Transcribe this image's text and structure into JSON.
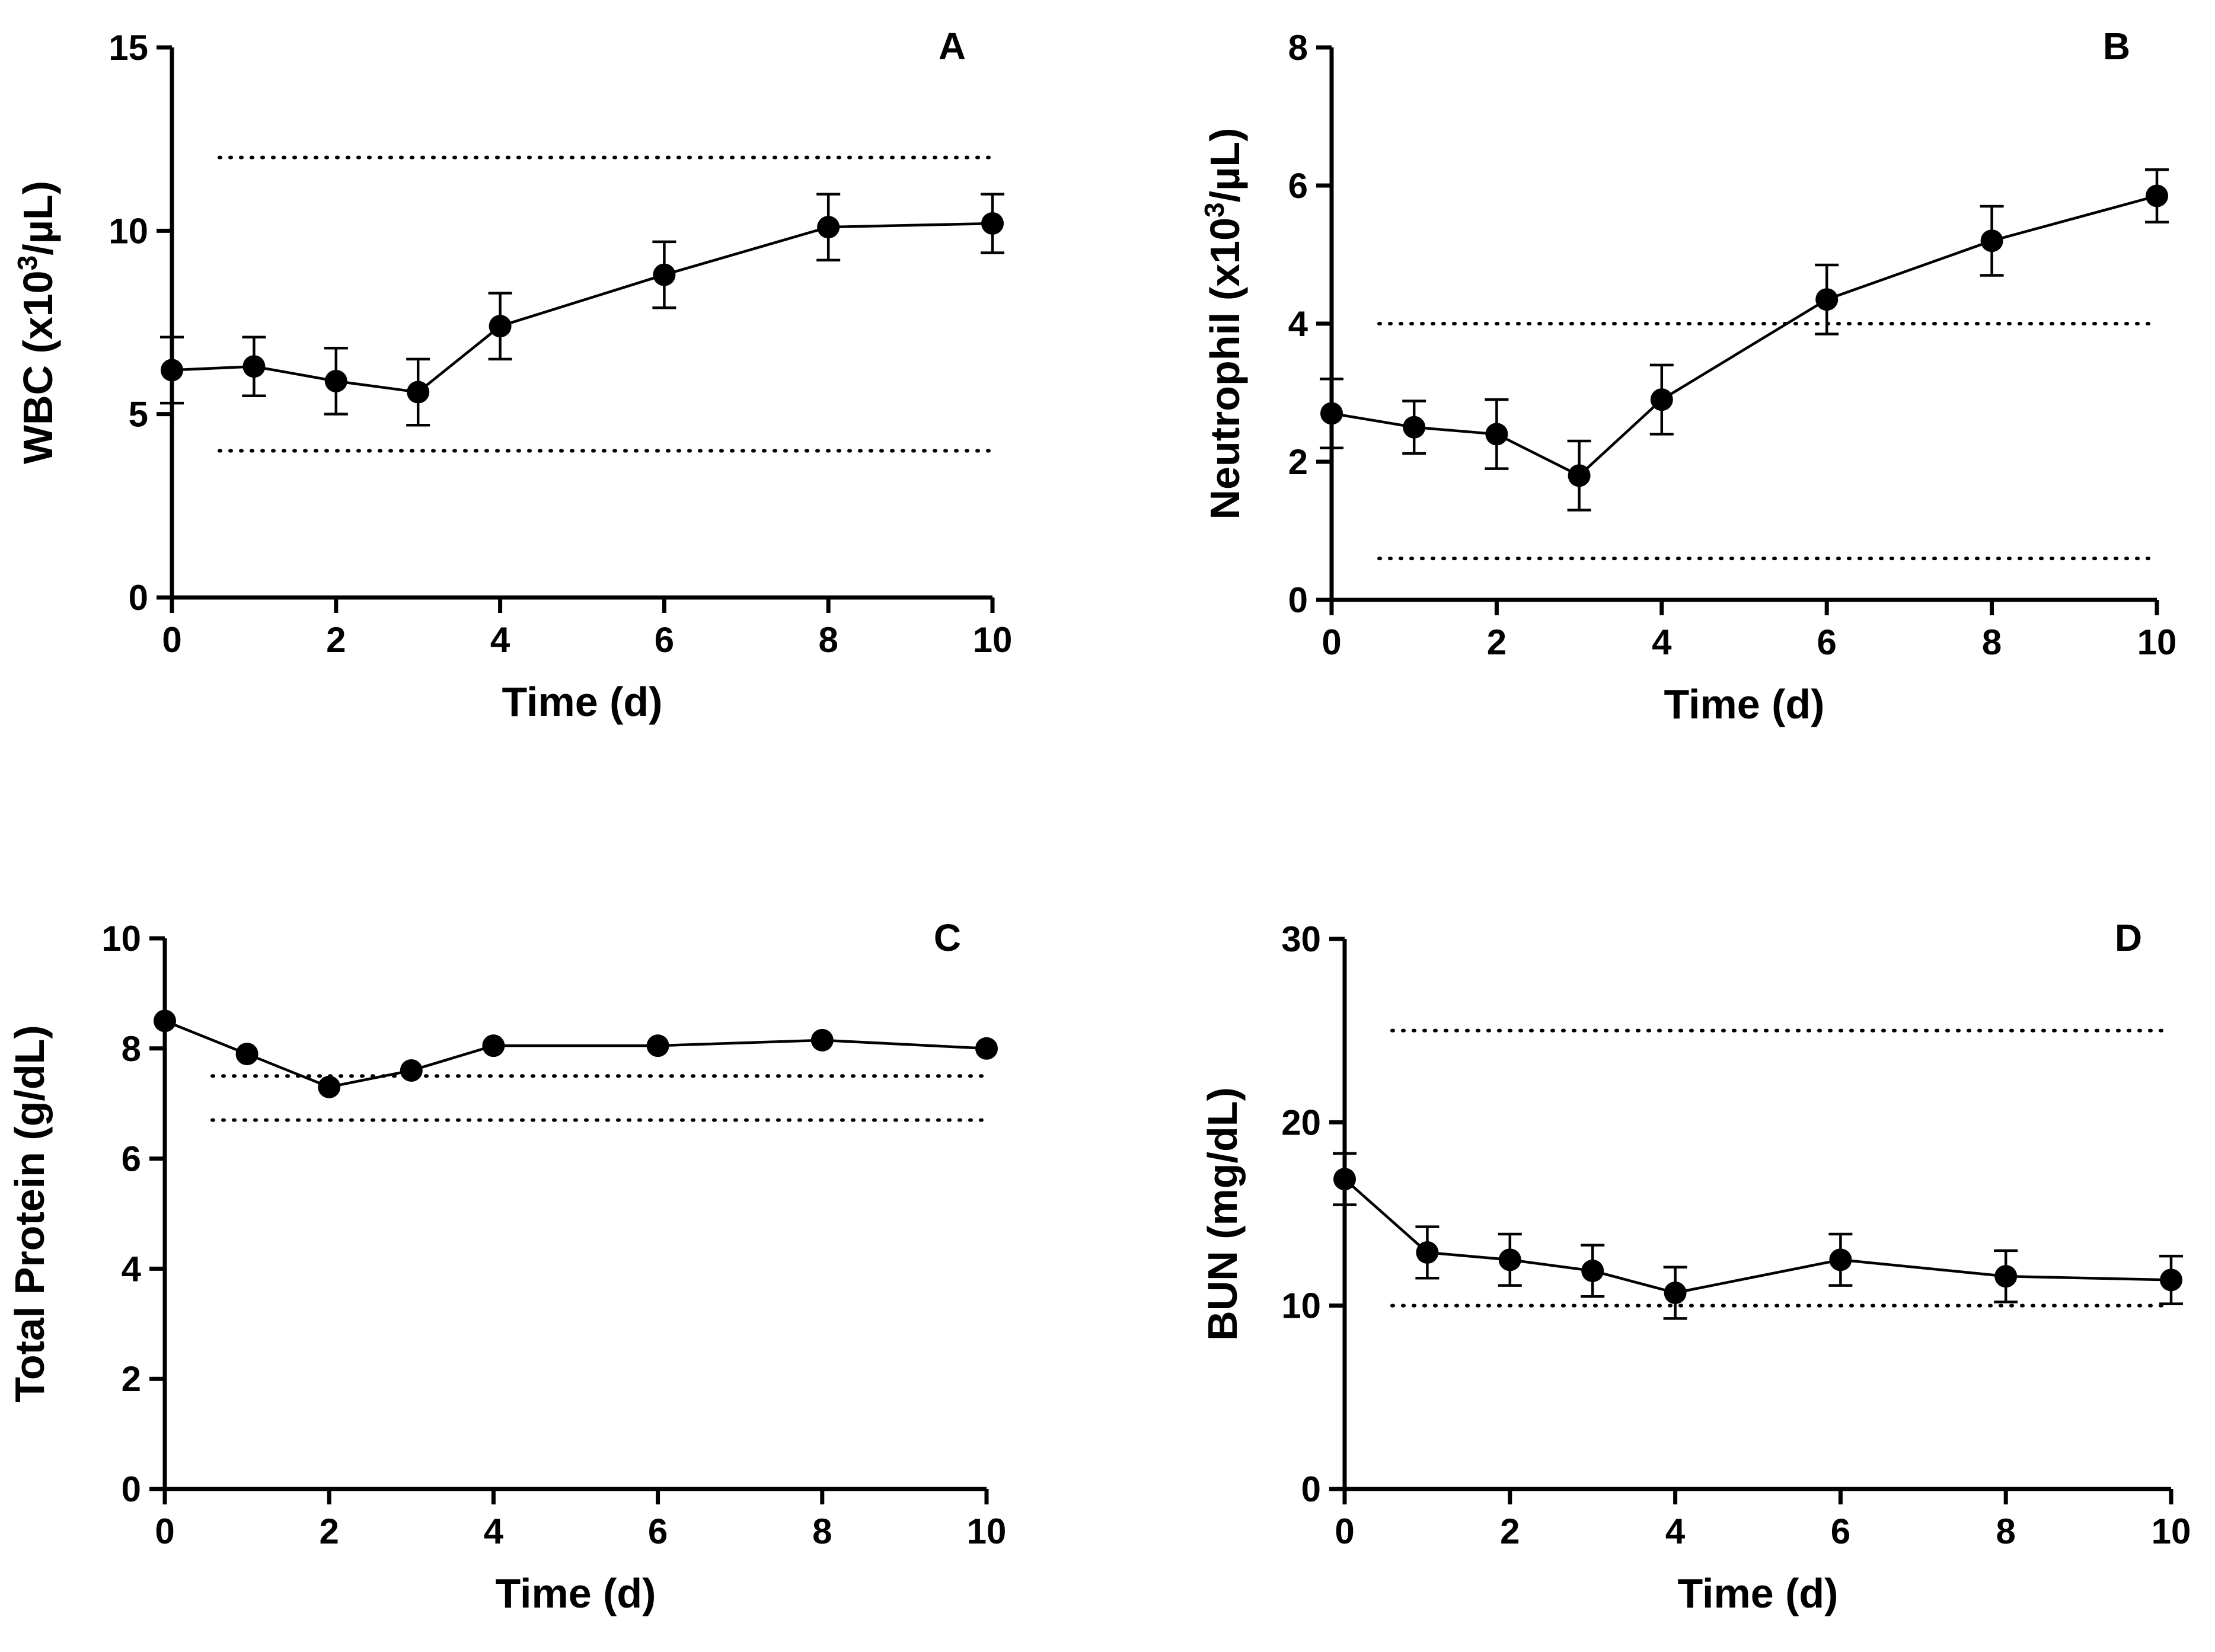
{
  "chart_data": [
    {
      "id": "A",
      "type": "line",
      "title": "A",
      "xlabel": "Time (d)",
      "ylabel_parts": [
        "WBC (x10",
        "3",
        "/µL)"
      ],
      "xlim": [
        0,
        10
      ],
      "ylim": [
        0,
        15
      ],
      "xticks": [
        0,
        2,
        4,
        6,
        8,
        10
      ],
      "yticks": [
        0,
        5,
        10,
        15
      ],
      "x": [
        0,
        1,
        2,
        3,
        4,
        6,
        8,
        10
      ],
      "values": [
        6.2,
        6.3,
        5.9,
        5.6,
        7.4,
        8.8,
        10.1,
        10.2
      ],
      "errors": [
        0.9,
        0.8,
        0.9,
        0.9,
        0.9,
        0.9,
        0.9,
        0.8
      ],
      "reference_lines": [
        12,
        4
      ],
      "grid": false
    },
    {
      "id": "B",
      "type": "line",
      "title": "B",
      "xlabel": "Time (d)",
      "ylabel_parts": [
        "Neutrophil (x10",
        "3",
        "/µL)"
      ],
      "xlim": [
        0,
        10
      ],
      "ylim": [
        0,
        8
      ],
      "xticks": [
        0,
        2,
        4,
        6,
        8,
        10
      ],
      "yticks": [
        0,
        2,
        4,
        6,
        8
      ],
      "x": [
        0,
        1,
        2,
        3,
        4,
        6,
        8,
        10
      ],
      "values": [
        2.7,
        2.5,
        2.4,
        1.8,
        2.9,
        4.35,
        5.2,
        5.85
      ],
      "errors": [
        0.5,
        0.38,
        0.5,
        0.5,
        0.5,
        0.5,
        0.5,
        0.38
      ],
      "reference_lines": [
        4,
        0.6
      ],
      "grid": false
    },
    {
      "id": "C",
      "type": "line",
      "title": "C",
      "xlabel": "Time (d)",
      "ylabel_parts": [
        "Total Protein (g/dL)"
      ],
      "xlim": [
        0,
        10
      ],
      "ylim": [
        0,
        10
      ],
      "xticks": [
        0,
        2,
        4,
        6,
        8,
        10
      ],
      "yticks": [
        0,
        2,
        4,
        6,
        8,
        10
      ],
      "x": [
        0,
        1,
        2,
        3,
        4,
        6,
        8,
        10
      ],
      "values": [
        8.5,
        7.9,
        7.3,
        7.6,
        8.05,
        8.05,
        8.15,
        8.0
      ],
      "errors": [
        0,
        0,
        0,
        0,
        0,
        0,
        0,
        0
      ],
      "reference_lines": [
        7.5,
        6.7
      ],
      "grid": false
    },
    {
      "id": "D",
      "type": "line",
      "title": "D",
      "xlabel": "Time (d)",
      "ylabel_parts": [
        "BUN (mg/dL)"
      ],
      "xlim": [
        0,
        10
      ],
      "ylim": [
        0,
        30
      ],
      "xticks": [
        0,
        2,
        4,
        6,
        8,
        10
      ],
      "yticks": [
        0,
        10,
        20,
        30
      ],
      "x": [
        0,
        1,
        2,
        3,
        4,
        6,
        8,
        10
      ],
      "values": [
        16.9,
        12.9,
        12.5,
        11.9,
        10.7,
        12.5,
        11.6,
        11.4
      ],
      "errors": [
        1.4,
        1.4,
        1.4,
        1.4,
        1.4,
        1.4,
        1.4,
        1.3
      ],
      "reference_lines": [
        25,
        10
      ],
      "grid": false
    }
  ]
}
